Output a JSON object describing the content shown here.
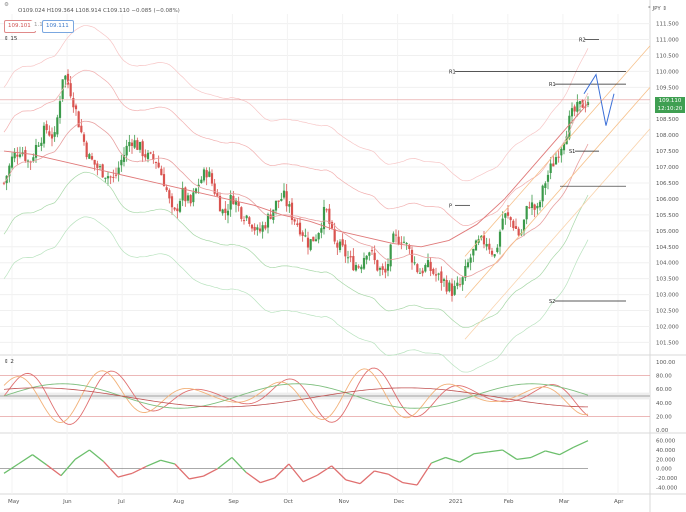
{
  "header": {
    "ohlc": "O109.024 H109.364 L108.914 C109.110 −0.085 (−0.08%)",
    "bid": "109.101",
    "spread": "1.1",
    "ask": "109.111",
    "currency_unit": "° JPY ⇕"
  },
  "price_tag": {
    "value": "109.110",
    "countdown": "12:10:20"
  },
  "panes": {
    "main_label": "15",
    "osc_label": "2"
  },
  "pivot_labels": [
    "R2",
    "R1",
    "R1",
    "P",
    "S1",
    "S2"
  ],
  "chart_data": [
    {
      "type": "candlestick",
      "title": "",
      "x_tick_labels": [
        "May",
        "Jun",
        "Jul",
        "Aug",
        "Sep",
        "Oct",
        "Nov",
        "Dec",
        "2021",
        "Feb",
        "Mar",
        "Apr"
      ],
      "y_tick_labels": [
        "111.500",
        "111.000",
        "110.500",
        "110.000",
        "109.500",
        "109.000",
        "108.500",
        "108.000",
        "107.500",
        "107.000",
        "106.500",
        "106.000",
        "105.500",
        "105.000",
        "104.500",
        "104.000",
        "103.500",
        "103.000",
        "102.500",
        "102.000",
        "101.500"
      ],
      "ylim": [
        101.2,
        111.8
      ],
      "close_path": [
        106.5,
        107.3,
        107.6,
        107.1,
        107.8,
        108.2,
        107.9,
        110.0,
        109.3,
        108.2,
        107.3,
        107.0,
        106.8,
        106.6,
        107.3,
        107.9,
        107.6,
        107.3,
        107.2,
        106.5,
        105.4,
        106.2,
        105.8,
        106.5,
        106.9,
        106.2,
        105.5,
        106.1,
        105.6,
        105.4,
        104.9,
        105.3,
        105.8,
        106.1,
        105.5,
        105.1,
        104.6,
        104.9,
        105.7,
        104.6,
        104.4,
        104.0,
        103.9,
        104.5,
        103.9,
        103.6,
        104.7,
        104.8,
        104.3,
        103.7,
        103.9,
        103.6,
        103.4,
        103.1,
        103.3,
        104.1,
        104.6,
        104.7,
        104.2,
        105.5,
        105.3,
        104.8,
        105.9,
        105.6,
        106.6,
        107.2,
        107.8,
        108.6,
        108.9,
        109.1
      ],
      "bands_sma": [
        107.5,
        107.4,
        107.2,
        107.0,
        106.8,
        106.6,
        106.4,
        106.2,
        106.0,
        105.8,
        105.5,
        105.3,
        105.0,
        104.8,
        104.6,
        104.5,
        104.7,
        105.2,
        106.0,
        107.0,
        108.0,
        109.0
      ],
      "projection_path": [
        109.3,
        109.9,
        108.3,
        109.3
      ]
    },
    {
      "type": "line",
      "title": "",
      "y_tick_labels": [
        "100.00",
        "80.00",
        "60.00",
        "40.00",
        "20.00",
        "0.00"
      ],
      "ylim": [
        0,
        100
      ],
      "levels": [
        80,
        50,
        20
      ]
    },
    {
      "type": "area",
      "title": "",
      "y_tick_labels": [
        "60.000",
        "40.000",
        "20.000",
        "0.000",
        "-20.000",
        "-40.000"
      ],
      "ylim": [
        -50,
        70
      ],
      "values": [
        -10,
        10,
        30,
        8,
        -15,
        20,
        40,
        15,
        -18,
        -10,
        5,
        18,
        10,
        -22,
        -16,
        0,
        24,
        -8,
        -30,
        -20,
        10,
        -28,
        -14,
        6,
        -24,
        -32,
        -5,
        -12,
        -30,
        -35,
        12,
        24,
        14,
        32,
        36,
        40,
        20,
        24,
        38,
        30,
        46,
        60
      ]
    }
  ]
}
